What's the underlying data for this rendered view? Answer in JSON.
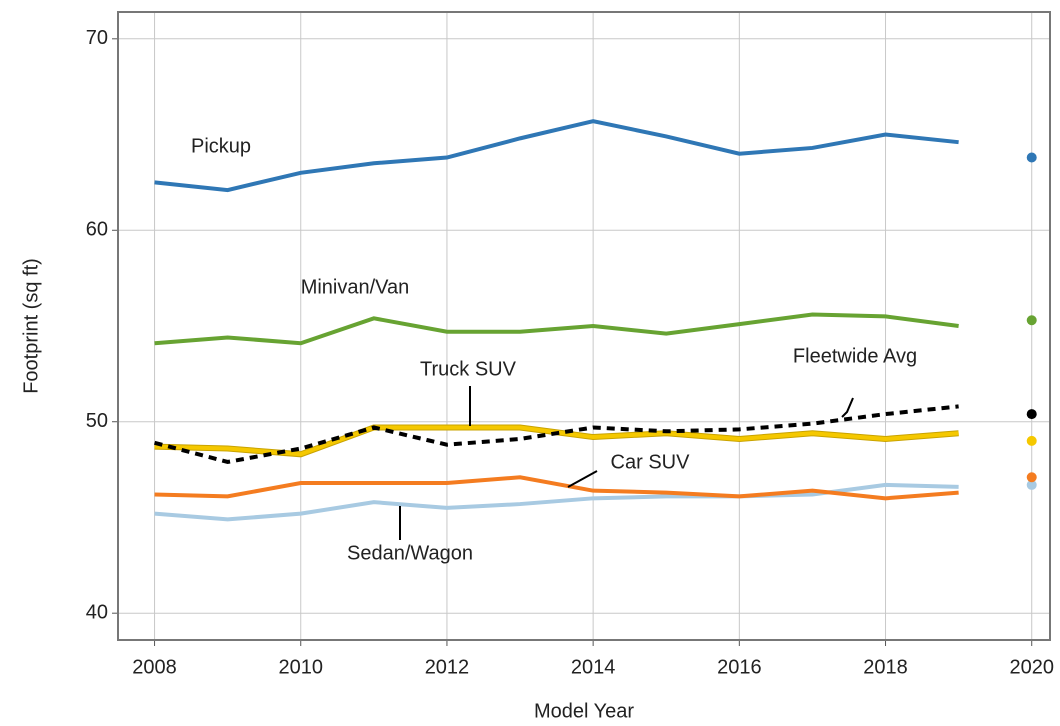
{
  "chart_data": {
    "type": "line",
    "x_label": "Model Year",
    "y_label": "Footprint (sq ft)",
    "x": [
      2008,
      2009,
      2010,
      2011,
      2012,
      2013,
      2014,
      2015,
      2016,
      2017,
      2018,
      2019
    ],
    "xlim": [
      2007.5,
      2020.25
    ],
    "xticks": [
      2008,
      2010,
      2012,
      2014,
      2016,
      2018,
      2020
    ],
    "ylim": [
      38.6,
      71.4
    ],
    "yticks": [
      40,
      50,
      60,
      70
    ],
    "grid": true,
    "series": [
      {
        "name": "Pickup",
        "color": "#2f77b5",
        "values": [
          62.5,
          62.1,
          63.0,
          63.5,
          63.8,
          64.8,
          65.7,
          64.9,
          64.0,
          64.3,
          65.0,
          64.6
        ],
        "point": {
          "x": 2020,
          "value": 63.8
        }
      },
      {
        "name": "Minivan/Van",
        "color": "#67a332",
        "values": [
          54.1,
          54.4,
          54.1,
          55.4,
          54.7,
          54.7,
          55.0,
          54.6,
          55.1,
          55.6,
          55.5,
          55.0
        ],
        "point": {
          "x": 2020,
          "value": 55.3
        }
      },
      {
        "name": "Fleetwide Avg",
        "color": "#000000",
        "dashed": true,
        "values": [
          48.9,
          47.9,
          48.6,
          49.7,
          48.8,
          49.1,
          49.7,
          49.5,
          49.6,
          49.9,
          50.4,
          50.8
        ],
        "point": {
          "x": 2020,
          "value": 50.4
        }
      },
      {
        "name": "Truck SUV",
        "color": "#f5c800",
        "values": [
          48.7,
          48.6,
          48.3,
          49.7,
          49.7,
          49.7,
          49.2,
          49.4,
          49.1,
          49.4,
          49.1,
          49.4
        ],
        "point": {
          "x": 2020,
          "value": 49.0
        }
      },
      {
        "name": "Car SUV",
        "color": "#f47c20",
        "values": [
          46.2,
          46.1,
          46.8,
          46.8,
          46.8,
          47.1,
          46.4,
          46.3,
          46.1,
          46.4,
          46.0,
          46.3
        ],
        "point": {
          "x": 2020,
          "value": 47.1
        }
      },
      {
        "name": "Sedan/Wagon",
        "color": "#a8cae2",
        "values": [
          45.2,
          44.9,
          45.2,
          45.8,
          45.5,
          45.7,
          46.0,
          46.1,
          46.1,
          46.2,
          46.7,
          46.6
        ],
        "point": {
          "x": 2020,
          "value": 46.7
        }
      }
    ]
  }
}
